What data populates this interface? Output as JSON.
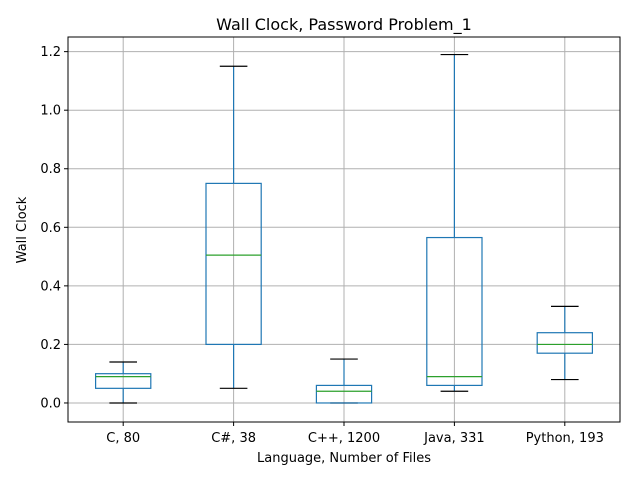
{
  "chart_data": {
    "type": "box",
    "title": "Wall Clock, Password Problem_1",
    "xlabel": "Language, Number of Files",
    "ylabel": "Wall Clock",
    "ylim": [
      -0.065,
      1.25
    ],
    "yticks": [
      0.0,
      0.2,
      0.4,
      0.6,
      0.8,
      1.0,
      1.2
    ],
    "ytick_labels": [
      "0.0",
      "0.2",
      "0.4",
      "0.6",
      "0.8",
      "1.0",
      "1.2"
    ],
    "grid": true,
    "categories": [
      "C, 80",
      "C#, 38",
      "C++, 1200",
      "Java, 331",
      "Python, 193"
    ],
    "boxes": [
      {
        "whisker_low": 0.0,
        "q1": 0.05,
        "median": 0.09,
        "q3": 0.1,
        "whisker_high": 0.14
      },
      {
        "whisker_low": 0.05,
        "q1": 0.2,
        "median": 0.505,
        "q3": 0.75,
        "whisker_high": 1.15
      },
      {
        "whisker_low": 0.0,
        "q1": 0.0,
        "median": 0.04,
        "q3": 0.06,
        "whisker_high": 0.15
      },
      {
        "whisker_low": 0.04,
        "q1": 0.06,
        "median": 0.09,
        "q3": 0.565,
        "whisker_high": 1.19
      },
      {
        "whisker_low": 0.08,
        "q1": 0.17,
        "median": 0.2,
        "q3": 0.24,
        "whisker_high": 0.33
      }
    ],
    "colors": {
      "box": "#1f77b4",
      "median": "#2ca02c",
      "cap": "#000000",
      "grid": "#b0b0b0"
    }
  }
}
